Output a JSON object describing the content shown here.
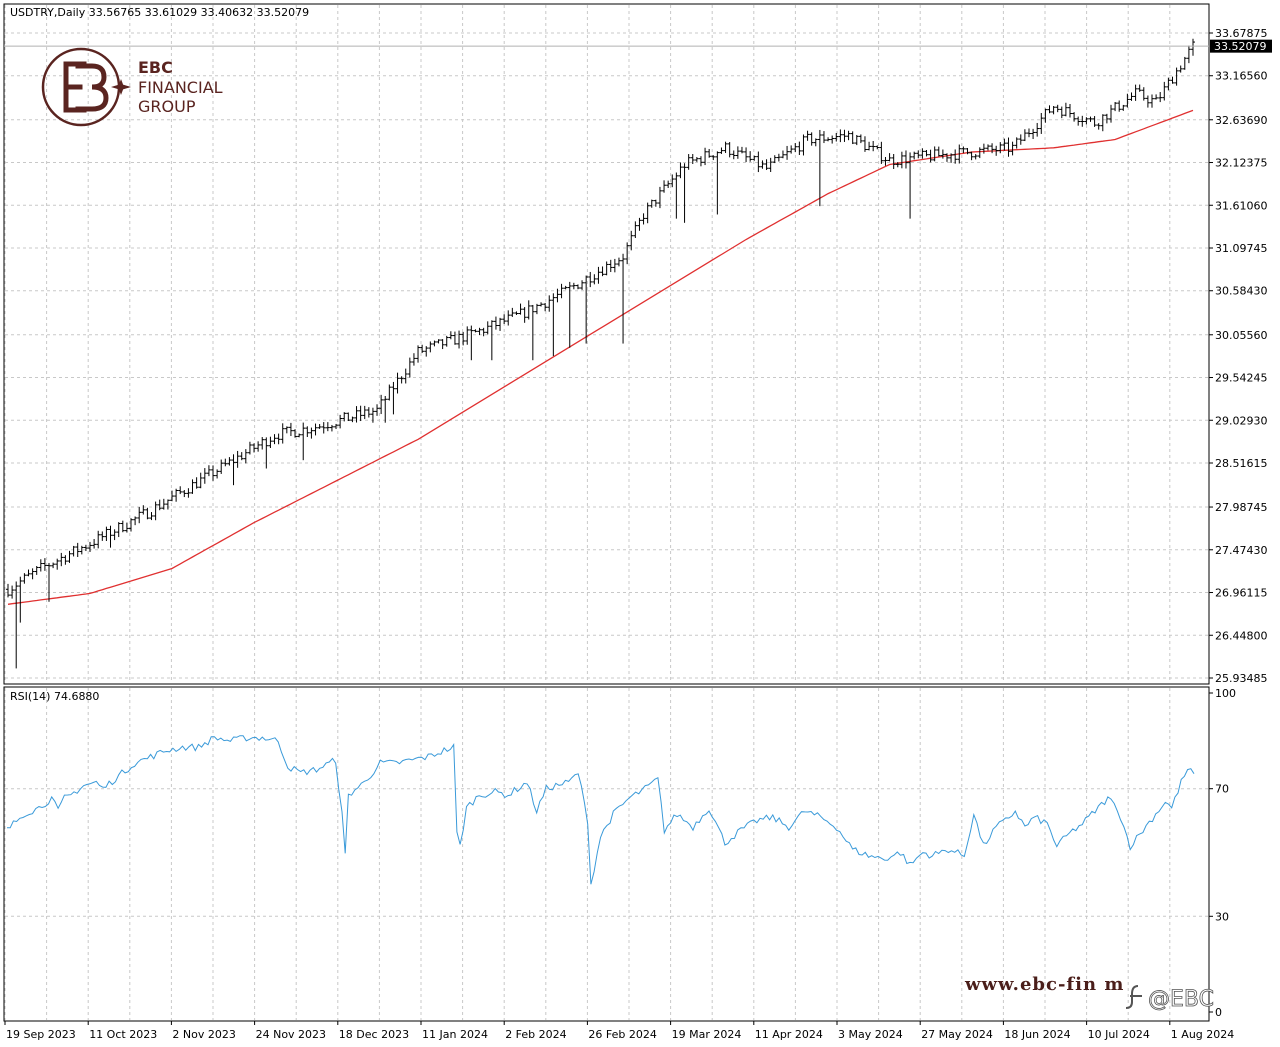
{
  "header": {
    "symbol_line": "USDTRY,Daily  33.56765 33.61029 33.40632 33.52079"
  },
  "logo": {
    "line1": "EBC",
    "line2": "FINANCIAL",
    "line3": "GROUP",
    "color": "#5a2420"
  },
  "watermark": {
    "url": "www.ebc-fin    m",
    "social": "@EBC"
  },
  "colors": {
    "bars": "#000000",
    "ma": "#e03030",
    "rsi": "#3a9ad9",
    "grid": "#c8c8c8",
    "price_tag_bg": "#000000",
    "price_tag_fg": "#ffffff"
  },
  "chart_data": [
    {
      "type": "ohlc",
      "title": "USDTRY,Daily",
      "last_price": 33.52079,
      "last_price_label": "33.52079",
      "ylim": [
        25.93485,
        33.67875
      ],
      "y_ticks": [
        "33.67875",
        "33.16560",
        "32.63690",
        "32.12375",
        "31.61060",
        "31.09745",
        "30.58430",
        "30.05560",
        "29.54245",
        "29.02930",
        "28.51615",
        "27.98745",
        "27.47430",
        "26.96115",
        "26.44800",
        "25.93485"
      ],
      "x_ticks": [
        "19 Sep 2023",
        "11 Oct 2023",
        "2 Nov 2023",
        "24 Nov 2023",
        "18 Dec 2023",
        "11 Jan 2024",
        "2 Feb 2024",
        "26 Feb 2024",
        "19 Mar 2024",
        "11 Apr 2024",
        "3 May 2024",
        "27 May 2024",
        "18 Jun 2024",
        "10 Jul 2024",
        "1 Aug 2024"
      ],
      "close_keypoints": [
        [
          0,
          27.0
        ],
        [
          8,
          27.25
        ],
        [
          20,
          27.55
        ],
        [
          35,
          27.95
        ],
        [
          50,
          28.4
        ],
        [
          65,
          28.85
        ],
        [
          75,
          28.95
        ],
        [
          90,
          29.15
        ],
        [
          100,
          29.85
        ],
        [
          115,
          30.1
        ],
        [
          125,
          30.3
        ],
        [
          135,
          30.55
        ],
        [
          150,
          31.0
        ],
        [
          155,
          31.5
        ],
        [
          165,
          32.1
        ],
        [
          175,
          32.3
        ],
        [
          185,
          32.05
        ],
        [
          195,
          32.4
        ],
        [
          205,
          32.45
        ],
        [
          215,
          32.15
        ],
        [
          225,
          32.2
        ],
        [
          235,
          32.25
        ],
        [
          245,
          32.3
        ],
        [
          255,
          32.8
        ],
        [
          265,
          32.6
        ],
        [
          275,
          32.95
        ],
        [
          280,
          32.85
        ],
        [
          289,
          33.52
        ]
      ],
      "long_lower_wicks": [
        {
          "bar": 2,
          "low": 26.05
        },
        {
          "bar": 3,
          "low": 26.6
        },
        {
          "bar": 10,
          "low": 26.85
        },
        {
          "bar": 25,
          "low": 27.5
        },
        {
          "bar": 55,
          "low": 28.25
        },
        {
          "bar": 63,
          "low": 28.45
        },
        {
          "bar": 72,
          "low": 28.55
        },
        {
          "bar": 89,
          "low": 29.0
        },
        {
          "bar": 92,
          "low": 29.0
        },
        {
          "bar": 94,
          "low": 29.1
        },
        {
          "bar": 113,
          "low": 29.75
        },
        {
          "bar": 118,
          "low": 29.75
        },
        {
          "bar": 128,
          "low": 29.75
        },
        {
          "bar": 133,
          "low": 29.8
        },
        {
          "bar": 137,
          "low": 29.9
        },
        {
          "bar": 141,
          "low": 29.95
        },
        {
          "bar": 150,
          "low": 29.95
        },
        {
          "bar": 156,
          "low": 31.45
        },
        {
          "bar": 163,
          "low": 31.45
        },
        {
          "bar": 165,
          "low": 31.4
        },
        {
          "bar": 173,
          "low": 31.5
        },
        {
          "bar": 198,
          "low": 31.6
        },
        {
          "bar": 220,
          "low": 31.45
        }
      ],
      "ma_line": {
        "name": "",
        "keypoints": [
          [
            0,
            26.82
          ],
          [
            20,
            26.95
          ],
          [
            40,
            27.25
          ],
          [
            60,
            27.8
          ],
          [
            80,
            28.3
          ],
          [
            100,
            28.8
          ],
          [
            120,
            29.4
          ],
          [
            140,
            30.0
          ],
          [
            160,
            30.6
          ],
          [
            180,
            31.2
          ],
          [
            200,
            31.75
          ],
          [
            215,
            32.1
          ],
          [
            235,
            32.25
          ],
          [
            255,
            32.3
          ],
          [
            270,
            32.4
          ],
          [
            289,
            32.75
          ]
        ]
      },
      "bar_count": 290
    },
    {
      "type": "line",
      "title": "RSI(14) 74.6880",
      "ylim": [
        0,
        100
      ],
      "y_ticks": [
        "100",
        "70",
        "30",
        "0"
      ],
      "levels": [
        70,
        30
      ],
      "series": [
        {
          "name": "",
          "keypoints": [
            [
              0,
              57
            ],
            [
              5,
              62
            ],
            [
              10,
              64
            ],
            [
              14,
              67
            ],
            [
              16,
              63
            ],
            [
              18,
              67
            ],
            [
              20,
              68
            ],
            [
              24,
              71
            ],
            [
              28,
              72
            ],
            [
              30,
              70
            ],
            [
              35,
              74
            ],
            [
              40,
              78
            ],
            [
              45,
              80
            ],
            [
              50,
              82
            ],
            [
              55,
              83
            ],
            [
              60,
              83
            ],
            [
              65,
              86
            ],
            [
              70,
              85
            ],
            [
              75,
              86
            ],
            [
              80,
              86
            ],
            [
              85,
              85
            ],
            [
              88,
              77
            ],
            [
              92,
              75
            ],
            [
              97,
              76
            ],
            [
              103,
              79
            ],
            [
              105,
              62
            ],
            [
              106,
              49
            ],
            [
              107,
              68
            ],
            [
              112,
              72
            ],
            [
              117,
              78
            ],
            [
              122,
              78
            ],
            [
              127,
              79
            ],
            [
              132,
              80
            ],
            [
              137,
              82
            ],
            [
              140,
              83
            ],
            [
              141,
              56
            ],
            [
              142,
              52
            ],
            [
              144,
              64
            ],
            [
              148,
              68
            ],
            [
              153,
              69
            ],
            [
              157,
              68
            ],
            [
              160,
              70
            ],
            [
              163,
              72
            ],
            [
              166,
              63
            ],
            [
              169,
              70
            ],
            [
              172,
              71
            ],
            [
              176,
              72
            ],
            [
              179,
              75
            ],
            [
              182,
              60
            ],
            [
              183,
              40
            ],
            [
              186,
              55
            ],
            [
              190,
              62
            ],
            [
              195,
              67
            ],
            [
              200,
              70
            ],
            [
              204,
              73
            ],
            [
              206,
              57
            ],
            [
              210,
              62
            ],
            [
              215,
              58
            ],
            [
              220,
              64
            ],
            [
              225,
              53
            ],
            [
              230,
              57
            ],
            [
              235,
              60
            ],
            [
              240,
              61
            ],
            [
              245,
              58
            ],
            [
              250,
              63
            ],
            [
              255,
              61
            ],
            [
              260,
              58
            ],
            [
              265,
              51
            ],
            [
              270,
              49
            ],
            [
              275,
              48
            ],
            [
              280,
              50
            ],
            [
              283,
              46
            ],
            [
              287,
              50
            ],
            [
              290,
              49
            ],
            [
              295,
              51
            ],
            [
              300,
              49
            ],
            [
              303,
              62
            ],
            [
              306,
              52
            ],
            [
              310,
              58
            ],
            [
              313,
              60
            ],
            [
              316,
              63
            ],
            [
              319,
              58
            ],
            [
              322,
              61
            ],
            [
              326,
              59
            ],
            [
              329,
              52
            ],
            [
              333,
              56
            ],
            [
              337,
              59
            ],
            [
              341,
              63
            ],
            [
              345,
              67
            ],
            [
              348,
              64
            ],
            [
              352,
              52
            ],
            [
              356,
              57
            ],
            [
              360,
              62
            ],
            [
              363,
              66
            ],
            [
              365,
              64
            ],
            [
              368,
              72
            ],
            [
              370,
              76
            ],
            [
              372,
              74.69
            ]
          ]
        }
      ]
    }
  ]
}
